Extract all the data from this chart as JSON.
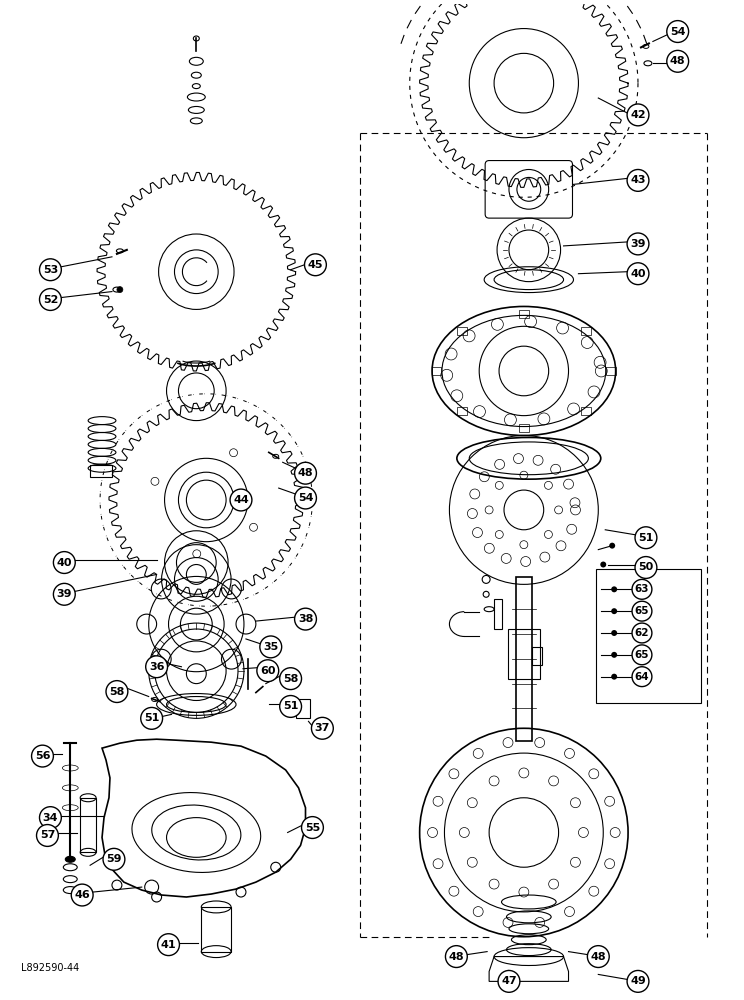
{
  "figure_code": "L892590-44",
  "bg_color": "#ffffff",
  "fig_width": 7.44,
  "fig_height": 10.0,
  "dpi": 100
}
